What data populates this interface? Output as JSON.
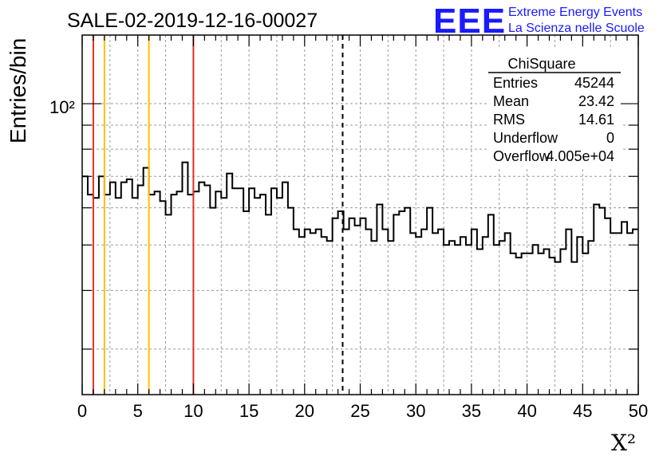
{
  "header": {
    "title": "SALE-02-2019-12-16-00027",
    "logo_text": "EEE",
    "logo_line1": "Extreme Energy Events",
    "logo_line2": "La Scienza nelle Scuole",
    "logo_color": "#1a1aff"
  },
  "chart_data": {
    "type": "histogram",
    "title": "SALE-02-2019-12-16-00027",
    "xlabel": "X²",
    "ylabel": "Entries/bin",
    "xlim": [
      0,
      50
    ],
    "ylim": [
      24,
      140
    ],
    "yscale": "log",
    "bin_width": 0.5,
    "x_ticks": [
      "0",
      "5",
      "10",
      "15",
      "20",
      "25",
      "30",
      "35",
      "40",
      "45",
      "50"
    ],
    "y_tick_label": "10²",
    "grid": true,
    "values": [
      70,
      64,
      63,
      70,
      64,
      68,
      63,
      68,
      69,
      63,
      67,
      73,
      64,
      65,
      62,
      58,
      64,
      65,
      75,
      64,
      65,
      68,
      67,
      60,
      65,
      63,
      71,
      66,
      66,
      59,
      66,
      63,
      64,
      58,
      66,
      63,
      68,
      60,
      54,
      52,
      54,
      53,
      54,
      52,
      51,
      57,
      59,
      54,
      57,
      55,
      57,
      54,
      51,
      61,
      54,
      51,
      58,
      59,
      60,
      53,
      52,
      54,
      60,
      53,
      54,
      50,
      51,
      50,
      52,
      50,
      54,
      49,
      52,
      58,
      50,
      51,
      53,
      48,
      47,
      48,
      48,
      50,
      48,
      49,
      47,
      46,
      49,
      54,
      46,
      52,
      48,
      51,
      61,
      60,
      57,
      53,
      53,
      56,
      53,
      54
    ],
    "vlines": [
      {
        "x": 1,
        "color": "#e03020",
        "style": "solid"
      },
      {
        "x": 2,
        "color": "#ffc000",
        "style": "solid"
      },
      {
        "x": 6,
        "color": "#ffc000",
        "style": "solid"
      },
      {
        "x": 10,
        "color": "#e03020",
        "style": "solid"
      },
      {
        "x": 23.42,
        "color": "#000000",
        "style": "dashed"
      }
    ]
  },
  "stats": {
    "title": "ChiSquare",
    "rows": [
      {
        "label": "Entries",
        "value": "45244"
      },
      {
        "label": "Mean",
        "value": "23.42"
      },
      {
        "label": "RMS",
        "value": "14.61"
      },
      {
        "label": "Underflow",
        "value": "0"
      },
      {
        "label": "Overflow",
        "value": "4.005e+04"
      }
    ]
  }
}
